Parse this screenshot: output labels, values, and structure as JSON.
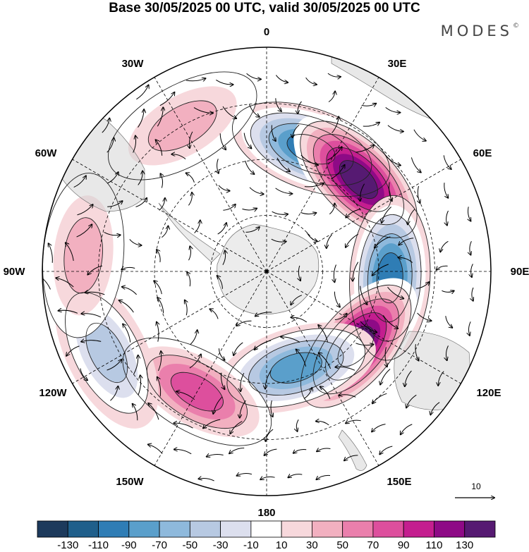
{
  "title": "Base 30/05/2025 00 UTC, valid 30/05/2025 00 UTC",
  "logo": {
    "text": "MODES",
    "mark": "©"
  },
  "longitude_labels": [
    "0",
    "30E",
    "60E",
    "90E",
    "120E",
    "150E",
    "180",
    "150W",
    "120W",
    "90W",
    "60W",
    "30W"
  ],
  "reference_vector": {
    "label": "10"
  },
  "colorbar": {
    "colors": [
      "#1d3a5c",
      "#1f5f8b",
      "#2f7db5",
      "#5a9fcb",
      "#8eb9dc",
      "#b7c9e2",
      "#dcdfee",
      "#ffffff",
      "#f7d8dc",
      "#f2b0c0",
      "#ea7fac",
      "#dd4f9d",
      "#c41e8f",
      "#8e0a86",
      "#561a72"
    ],
    "tick_labels": [
      "-130",
      "-110",
      "-90",
      "-70",
      "-50",
      "-30",
      "-10",
      "10",
      "30",
      "50",
      "70",
      "90",
      "110",
      "130"
    ]
  },
  "anomaly_centers": [
    {
      "lon": 20,
      "r": 0.58,
      "value": -110
    },
    {
      "lon": 45,
      "r": 0.58,
      "value": 130
    },
    {
      "lon": 93,
      "r": 0.55,
      "value": -110
    },
    {
      "lon": 130,
      "r": 0.52,
      "value": 130
    },
    {
      "lon": 163,
      "r": 0.45,
      "value": -90
    },
    {
      "lon": -150,
      "r": 0.62,
      "value": 70
    },
    {
      "lon": -117,
      "r": 0.8,
      "value": -50
    },
    {
      "lon": -85,
      "r": 0.82,
      "value": 30
    },
    {
      "lon": -30,
      "r": 0.75,
      "value": 30
    }
  ]
}
